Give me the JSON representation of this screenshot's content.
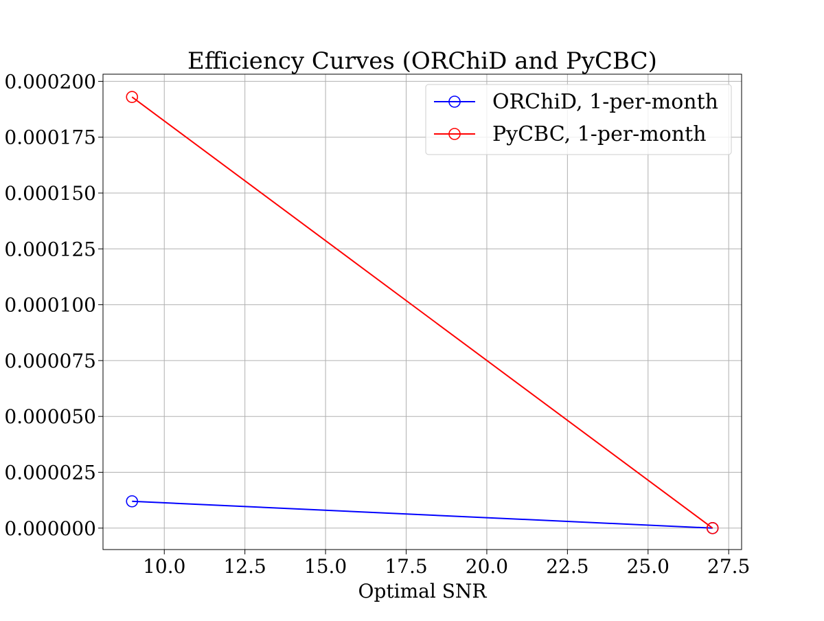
{
  "chart_data": {
    "type": "line",
    "title": "Efficiency Curves (ORChiD and PyCBC)",
    "xlabel": "Optimal SNR",
    "ylabel": "",
    "xlim": [
      8.1,
      27.9
    ],
    "ylim": [
      -9.6e-06,
      0.0002032
    ],
    "xticks": [
      10.0,
      12.5,
      15.0,
      17.5,
      20.0,
      22.5,
      25.0,
      27.5
    ],
    "xtick_labels": [
      "10.0",
      "12.5",
      "15.0",
      "17.5",
      "20.0",
      "22.5",
      "25.0",
      "27.5"
    ],
    "yticks": [
      0.0,
      2.5e-05,
      5e-05,
      7.5e-05,
      0.0001,
      0.000125,
      0.00015,
      0.000175,
      0.0002
    ],
    "ytick_labels": [
      "0.000000",
      "0.000025",
      "0.000050",
      "0.000075",
      "0.000100",
      "0.000125",
      "0.000150",
      "0.000175",
      "0.000200"
    ],
    "grid": true,
    "legend_position": "top-right",
    "series": [
      {
        "name": "ORChiD, 1-per-month",
        "color": "#0000ff",
        "marker": "open-circle",
        "x": [
          9.0,
          27.0
        ],
        "y": [
          1.2e-05,
          0.0
        ]
      },
      {
        "name": "PyCBC, 1-per-month",
        "color": "#ff0000",
        "marker": "open-circle",
        "x": [
          9.0,
          27.0
        ],
        "y": [
          0.000193,
          0.0
        ]
      }
    ]
  }
}
